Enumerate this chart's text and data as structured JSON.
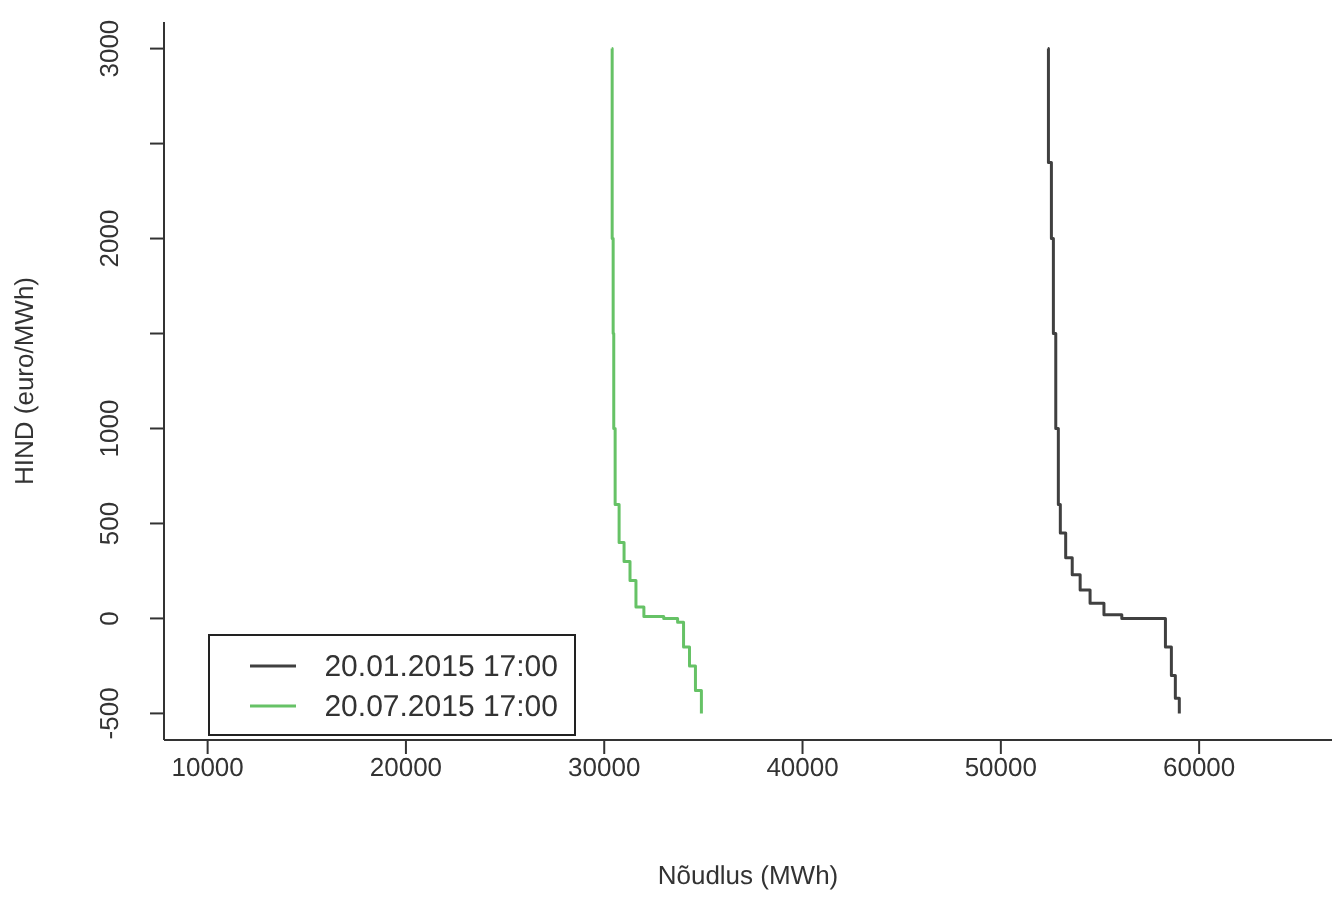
{
  "chart_data": {
    "type": "step",
    "xlabel": "Nõudlus (MWh)",
    "ylabel": "HIND (euro/MWh)",
    "xlim": [
      7800,
      66700
    ],
    "xticks": [
      10000,
      20000,
      30000,
      40000,
      50000,
      60000
    ],
    "ylim": [
      -640,
      3140
    ],
    "yticks": [
      -500,
      0,
      500,
      1000,
      {
        "value": 1500,
        "label": null
      },
      2000,
      {
        "value": 2500,
        "label": null
      },
      3000
    ],
    "legend": "bottom left",
    "grid": false,
    "series": [
      {
        "name": "20.01.2015 17:00",
        "color": "#404040",
        "x": [
          52370,
          52400,
          52550,
          52650,
          52770,
          52900,
          53000,
          53270,
          53600,
          54000,
          54500,
          55200,
          56100,
          58000,
          58300,
          58600,
          58800,
          59000
        ],
        "values": [
          3000,
          2400,
          2000,
          1500,
          1000,
          600,
          450,
          320,
          230,
          150,
          80,
          20,
          0,
          0,
          -150,
          -300,
          -420,
          -500
        ]
      },
      {
        "name": "20.07.2015 17:00",
        "color": "#66c266",
        "x": [
          30380,
          30400,
          30450,
          30480,
          30550,
          30750,
          31000,
          31300,
          31600,
          32000,
          33000,
          33700,
          34000,
          34300,
          34600,
          34900
        ],
        "values": [
          3000,
          2000,
          1500,
          1000,
          600,
          400,
          300,
          200,
          60,
          10,
          0,
          -20,
          -150,
          -250,
          -380,
          -500
        ]
      }
    ]
  }
}
